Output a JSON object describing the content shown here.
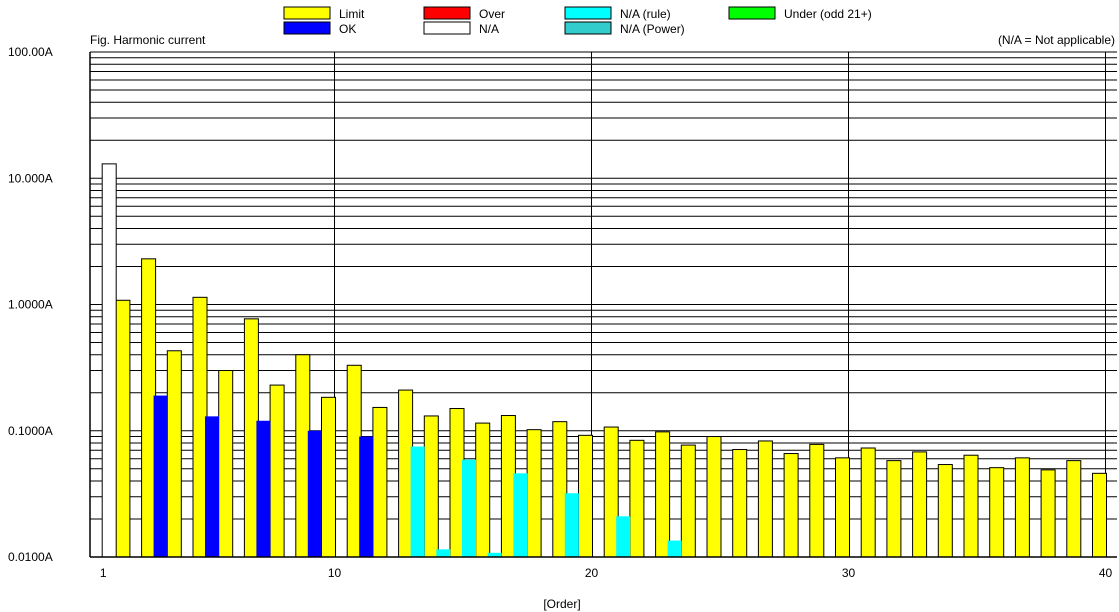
{
  "chart_data": {
    "type": "bar",
    "title": "Fig. Harmonic current",
    "note": "(N/A = Not applicable)",
    "xlabel": "[Order]",
    "ylabel": "",
    "yscale": "log",
    "ylim": [
      0.01,
      100
    ],
    "xlim": [
      1,
      40
    ],
    "grid": true,
    "legend_position": "top",
    "y_ticks": [
      {
        "value": 100,
        "label": "100.00A"
      },
      {
        "value": 10,
        "label": "10.000A"
      },
      {
        "value": 1,
        "label": "1.0000A"
      },
      {
        "value": 0.1,
        "label": "0.1000A"
      },
      {
        "value": 0.01,
        "label": "0.0100A"
      }
    ],
    "x_ticks": [
      {
        "value": 1,
        "label": "1"
      },
      {
        "value": 10,
        "label": "10"
      },
      {
        "value": 20,
        "label": "20"
      },
      {
        "value": 30,
        "label": "30"
      },
      {
        "value": 40,
        "label": "40"
      }
    ],
    "legend": [
      {
        "key": "limit",
        "label": "Limit",
        "color": "#ffff00"
      },
      {
        "key": "ok",
        "label": "OK",
        "color": "#0000ff"
      },
      {
        "key": "over",
        "label": "Over",
        "color": "#ff0000"
      },
      {
        "key": "na",
        "label": "N/A",
        "color": "#ffffff"
      },
      {
        "key": "na_rule",
        "label": "N/A (rule)",
        "color": "#00ffff"
      },
      {
        "key": "na_power",
        "label": "N/A (Power)",
        "color": "#33cccc"
      },
      {
        "key": "under",
        "label": "Under (odd 21+)",
        "color": "#00ff00"
      }
    ],
    "limits": [
      {
        "order": 2,
        "value": 1.08
      },
      {
        "order": 3,
        "value": 2.3
      },
      {
        "order": 4,
        "value": 0.43
      },
      {
        "order": 5,
        "value": 1.14
      },
      {
        "order": 6,
        "value": 0.3
      },
      {
        "order": 7,
        "value": 0.77
      },
      {
        "order": 8,
        "value": 0.23
      },
      {
        "order": 9,
        "value": 0.4
      },
      {
        "order": 10,
        "value": 0.184
      },
      {
        "order": 11,
        "value": 0.33
      },
      {
        "order": 12,
        "value": 0.153
      },
      {
        "order": 13,
        "value": 0.21
      },
      {
        "order": 14,
        "value": 0.131
      },
      {
        "order": 15,
        "value": 0.15
      },
      {
        "order": 16,
        "value": 0.115
      },
      {
        "order": 17,
        "value": 0.132
      },
      {
        "order": 18,
        "value": 0.102
      },
      {
        "order": 19,
        "value": 0.118
      },
      {
        "order": 20,
        "value": 0.092
      },
      {
        "order": 21,
        "value": 0.107
      },
      {
        "order": 22,
        "value": 0.084
      },
      {
        "order": 23,
        "value": 0.098
      },
      {
        "order": 24,
        "value": 0.077
      },
      {
        "order": 25,
        "value": 0.09
      },
      {
        "order": 26,
        "value": 0.071
      },
      {
        "order": 27,
        "value": 0.083
      },
      {
        "order": 28,
        "value": 0.066
      },
      {
        "order": 29,
        "value": 0.078
      },
      {
        "order": 30,
        "value": 0.061
      },
      {
        "order": 31,
        "value": 0.073
      },
      {
        "order": 32,
        "value": 0.058
      },
      {
        "order": 33,
        "value": 0.068
      },
      {
        "order": 34,
        "value": 0.054
      },
      {
        "order": 35,
        "value": 0.064
      },
      {
        "order": 36,
        "value": 0.051
      },
      {
        "order": 37,
        "value": 0.061
      },
      {
        "order": 38,
        "value": 0.049
      },
      {
        "order": 39,
        "value": 0.058
      },
      {
        "order": 40,
        "value": 0.046
      }
    ],
    "measured": [
      {
        "order": 1,
        "value": 13.0,
        "status": "na"
      },
      {
        "order": 3,
        "value": 0.19,
        "status": "ok"
      },
      {
        "order": 5,
        "value": 0.13,
        "status": "ok"
      },
      {
        "order": 7,
        "value": 0.12,
        "status": "ok"
      },
      {
        "order": 9,
        "value": 0.1,
        "status": "ok"
      },
      {
        "order": 11,
        "value": 0.09,
        "status": "ok"
      },
      {
        "order": 13,
        "value": 0.075,
        "status": "na_rule"
      },
      {
        "order": 14,
        "value": 0.0115,
        "status": "na_rule"
      },
      {
        "order": 15,
        "value": 0.059,
        "status": "na_rule"
      },
      {
        "order": 16,
        "value": 0.0108,
        "status": "na_rule"
      },
      {
        "order": 17,
        "value": 0.046,
        "status": "na_rule"
      },
      {
        "order": 19,
        "value": 0.032,
        "status": "na_rule"
      },
      {
        "order": 21,
        "value": 0.021,
        "status": "na_rule"
      },
      {
        "order": 23,
        "value": 0.0135,
        "status": "na_rule"
      }
    ]
  }
}
